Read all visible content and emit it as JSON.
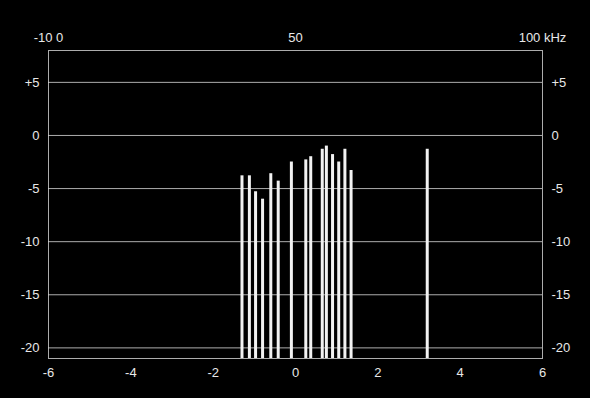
{
  "chart_data": {
    "type": "stem",
    "x": [
      -1.3,
      -1.12,
      -0.97,
      -0.8,
      -0.6,
      -0.42,
      -0.1,
      0.25,
      0.37,
      0.65,
      0.75,
      0.9,
      1.05,
      1.2,
      1.35,
      3.2
    ],
    "values": [
      -3.8,
      -3.8,
      -5.3,
      -6,
      -3.6,
      -4.3,
      -2.5,
      -2.3,
      -2,
      -1.3,
      -1,
      -1.8,
      -2.5,
      -1.3,
      -3.3,
      -1.3
    ],
    "color": "#f2f2f2",
    "xlim": [
      -6,
      6
    ],
    "xticks": [
      -6,
      -4,
      -2,
      0,
      2,
      4,
      6
    ],
    "x2lim": [
      0,
      100
    ],
    "x2ticks": [
      {
        "value": 0,
        "label": "-10 0"
      },
      50,
      {
        "value": 100,
        "label": "100 kHz"
      }
    ],
    "ylim": [
      -21,
      8
    ],
    "yticks": [
      {
        "value": 5,
        "label": "+5"
      },
      0,
      -5,
      -10,
      -15,
      -20
    ],
    "grid": true
  }
}
